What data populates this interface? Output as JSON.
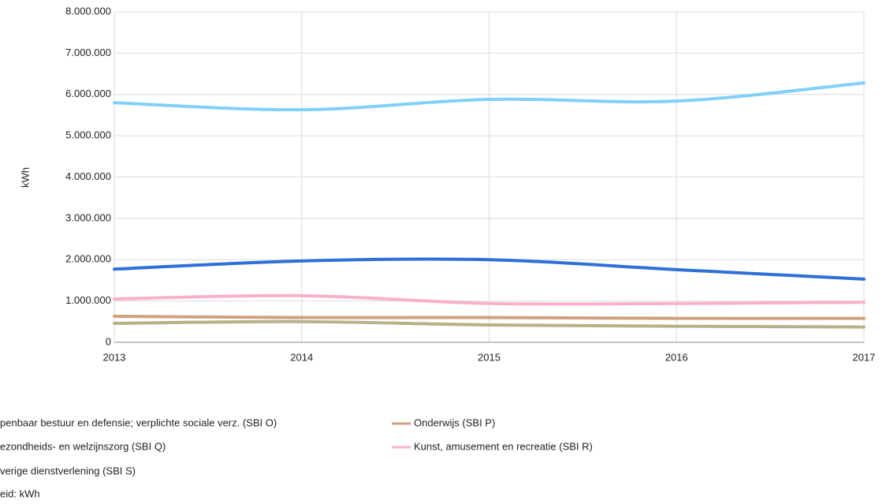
{
  "chart_data": {
    "type": "line",
    "y_label": "kWh",
    "x": [
      2013,
      2014,
      2015,
      2016,
      2017
    ],
    "xlim": [
      2013,
      2017
    ],
    "xticks": [
      2013,
      2014,
      2015,
      2016,
      2017
    ],
    "ylim": [
      0,
      8000000
    ],
    "yticks": [
      0,
      {
        "value": 1000000,
        "label": "1.000.000"
      },
      {
        "value": 2000000,
        "label": "2.000.000"
      },
      {
        "value": 3000000,
        "label": "3.000.000"
      },
      {
        "value": 4000000,
        "label": "4.000.000"
      },
      {
        "value": 5000000,
        "label": "5.000.000"
      },
      {
        "value": 6000000,
        "label": "6.000.000"
      },
      {
        "value": 7000000,
        "label": "7.000.000"
      },
      {
        "value": 8000000,
        "label": "8.000.000"
      }
    ],
    "grid": true,
    "series": [
      {
        "name": "penbaar bestuur en defensie; verplichte sociale verz. (SBI O)",
        "color": "#2f6fd8",
        "values": [
          1770000,
          1970000,
          2000000,
          1760000,
          1530000
        ]
      },
      {
        "name": "Onderwijs (SBI P)",
        "color": "#d0a080",
        "values": [
          630000,
          600000,
          600000,
          580000,
          580000
        ]
      },
      {
        "name": "ezondheids- en welzijnszorg (SBI Q)",
        "color": "#80d0f8",
        "values": [
          5800000,
          5630000,
          5880000,
          5840000,
          6280000
        ]
      },
      {
        "name": "Kunst, amusement en recreatie (SBI R)",
        "color": "#f8b0cc",
        "values": [
          1050000,
          1130000,
          940000,
          940000,
          970000
        ]
      },
      {
        "name": "verige dienstverlening (SBI S)",
        "color": "#b8b088",
        "values": [
          460000,
          500000,
          420000,
          390000,
          370000
        ]
      }
    ],
    "unit_note": "eid: kWh"
  }
}
